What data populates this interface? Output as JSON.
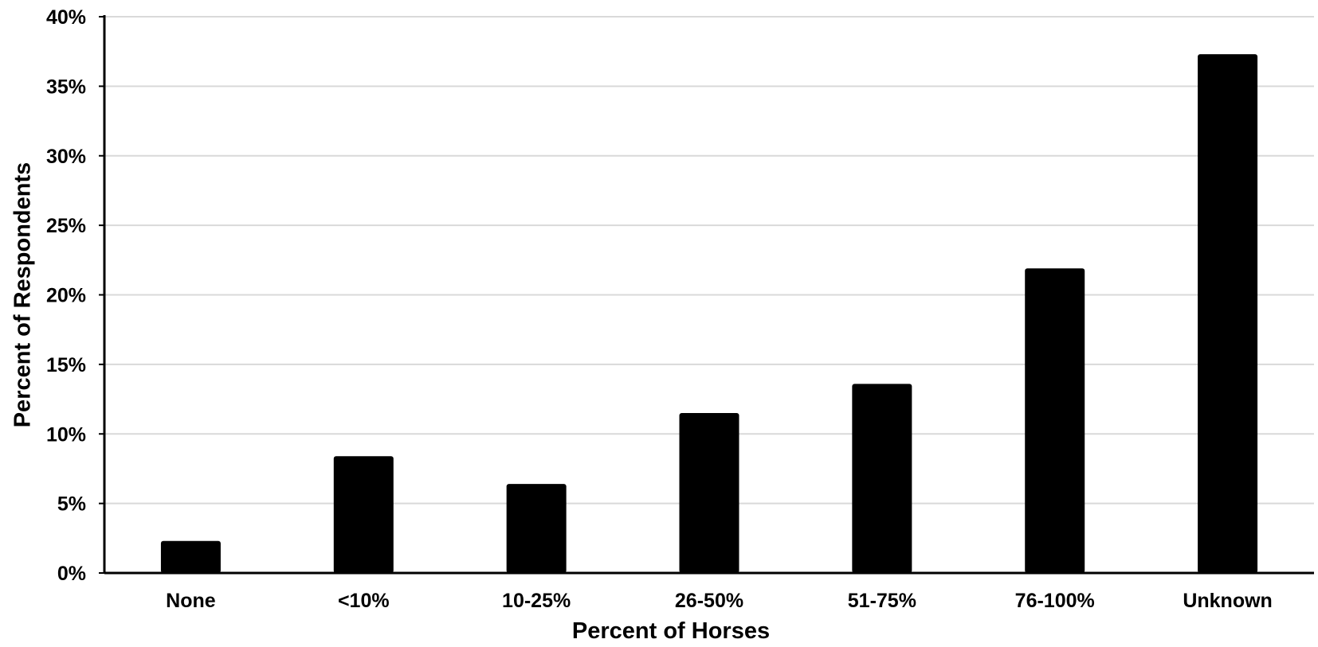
{
  "chart_data": {
    "type": "bar",
    "title": "",
    "xlabel": "Percent of Horses",
    "ylabel": "Percent of Respondents",
    "categories": [
      "None",
      "<10%",
      "10-25%",
      "26-50%",
      "51-75%",
      "76-100%",
      "Unknown"
    ],
    "values": [
      2.3,
      8.4,
      6.4,
      11.5,
      13.6,
      21.9,
      37.3
    ],
    "ylim": [
      0,
      40
    ],
    "y_ticks": [
      0,
      5,
      10,
      15,
      20,
      25,
      30,
      35,
      40
    ],
    "y_tick_labels": [
      "0%",
      "5%",
      "10%",
      "15%",
      "20%",
      "25%",
      "30%",
      "35%",
      "40%"
    ],
    "grid": true,
    "legend": "none",
    "colors": {
      "bar": "#000000",
      "grid": "#d9d9d9",
      "axis": "#000000"
    }
  }
}
